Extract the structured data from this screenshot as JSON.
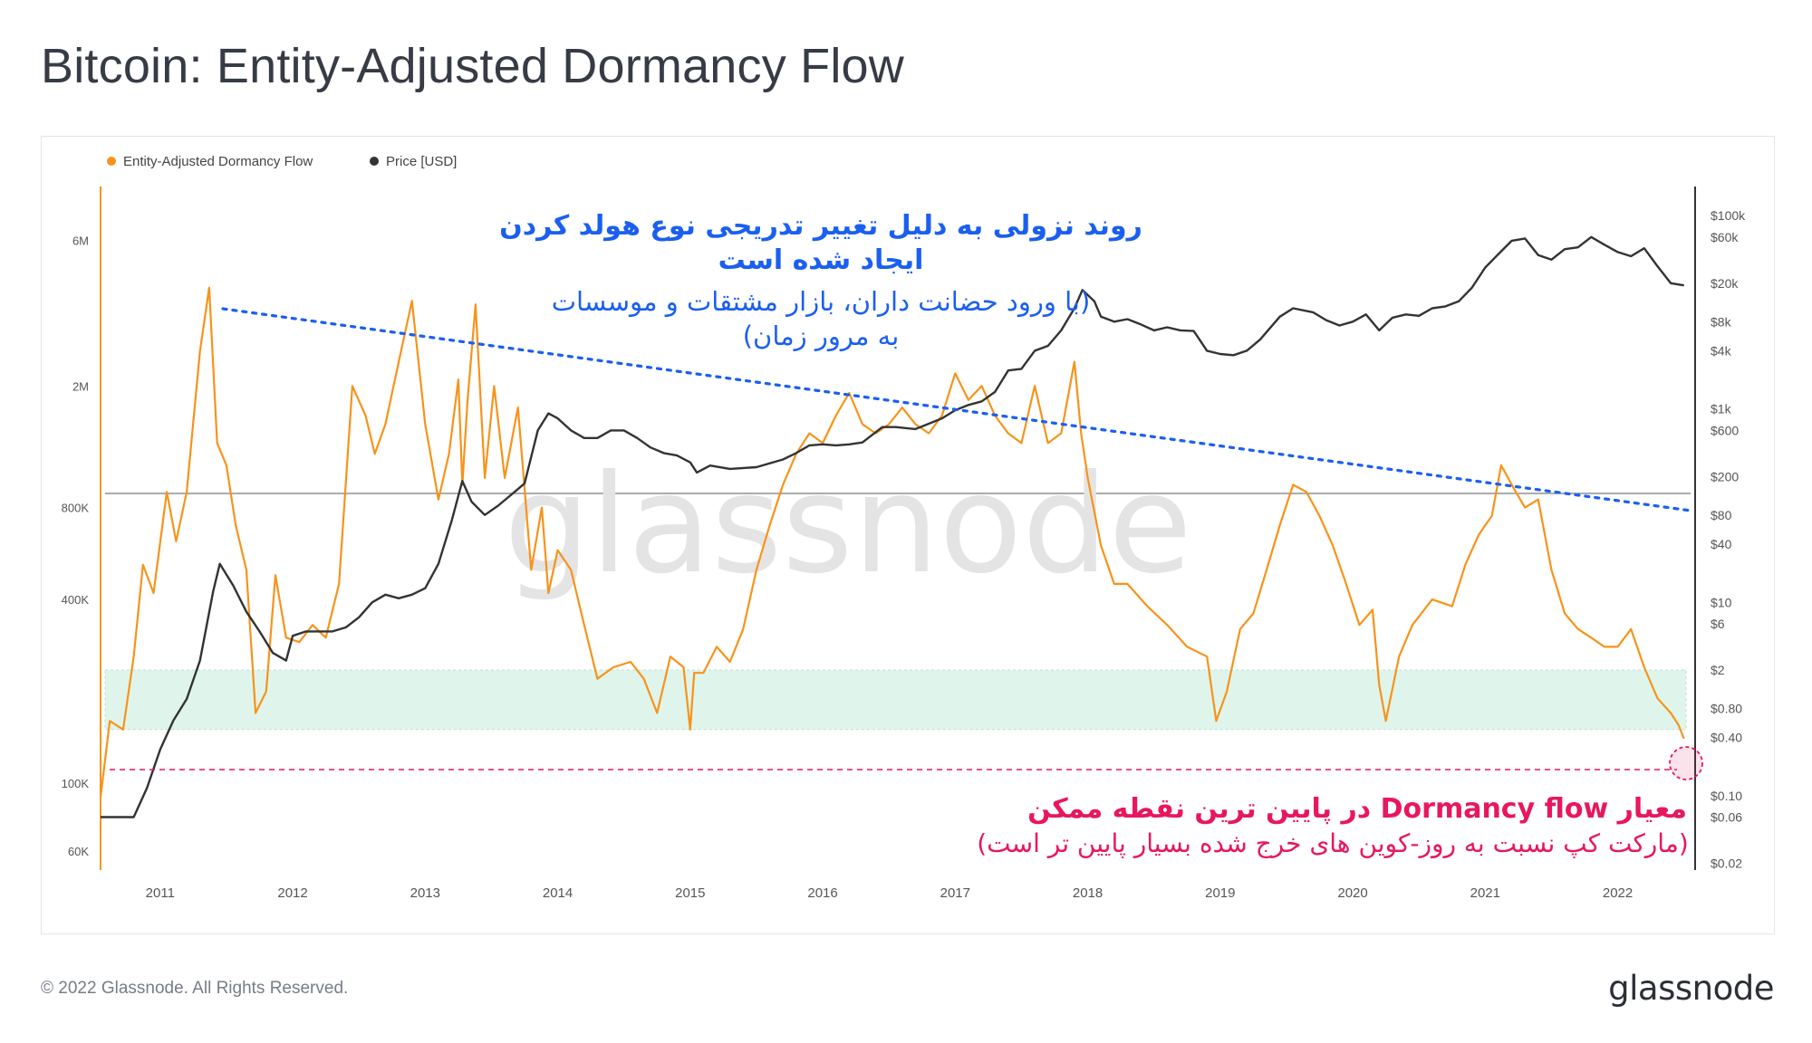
{
  "page": {
    "title": "Bitcoin: Entity-Adjusted Dormancy Flow",
    "copyright": "© 2022 Glassnode. All Rights Reserved.",
    "brand": "glassnode",
    "watermark": "glassnode"
  },
  "colors": {
    "dormancy": "#f7931a",
    "price": "#333333",
    "trend": "#1a5ff0",
    "low_marker": "#e8175d",
    "band": "#dff5ec",
    "annotation_blue": "#1a5ff0",
    "annotation_pink": "#e8175d"
  },
  "annotations": {
    "trend_title_1": "روند نزولی به دلیل تغییر تدریجی نوع هولد کردن",
    "trend_title_2": "ایجاد شده است",
    "trend_sub_1": "(با ورود حضانت داران، بازار مشتقات و موسسات",
    "trend_sub_2": "به مرور زمان)",
    "low_title": "معیار Dormancy flow در پایین ترین نقطه ممکن",
    "low_sub": "(مارکت کپ نسبت به روز-کوین های خرج شده بسیار پایین تر است)"
  },
  "chart_data": {
    "type": "line",
    "title": "Bitcoin: Entity-Adjusted Dormancy Flow",
    "legend": [
      "Entity-Adjusted Dormancy Flow",
      "Price [USD]"
    ],
    "legend_position": "top-left",
    "x_ticks": [
      "2011",
      "2012",
      "2013",
      "2014",
      "2015",
      "2016",
      "2017",
      "2018",
      "2019",
      "2020",
      "2021",
      "2022"
    ],
    "xlim": [
      2010.55,
      2022.55
    ],
    "left_axis": {
      "scale": "log",
      "ticks": [
        "6M",
        "2M",
        "800K",
        "400K",
        "100K",
        "60K"
      ],
      "tick_values": [
        6000000,
        2000000,
        800000,
        400000,
        100000,
        60000
      ],
      "ylim": [
        52000,
        9000000
      ]
    },
    "right_axis": {
      "scale": "log",
      "ticks": [
        "$100k",
        "$60k",
        "$20k",
        "$8k",
        "$4k",
        "$1k",
        "$600",
        "$200",
        "$80",
        "$40",
        "$10",
        "$6",
        "$2",
        "$0.80",
        "$0.40",
        "$0.10",
        "$0.06",
        "$0.02"
      ],
      "tick_values": [
        100000,
        60000,
        20000,
        8000,
        4000,
        1000,
        600,
        200,
        80,
        40,
        10,
        6,
        2,
        0.8,
        0.4,
        0.1,
        0.06,
        0.02
      ],
      "ylim": [
        0.017,
        200000
      ]
    },
    "series": [
      {
        "name": "Entity-Adjusted Dormancy Flow",
        "axis": "left",
        "x": [
          2010.55,
          2010.62,
          2010.72,
          2010.8,
          2010.87,
          2010.95,
          2011.05,
          2011.12,
          2011.2,
          2011.3,
          2011.37,
          2011.43,
          2011.5,
          2011.57,
          2011.65,
          2011.72,
          2011.8,
          2011.87,
          2011.95,
          2012.05,
          2012.15,
          2012.25,
          2012.35,
          2012.45,
          2012.55,
          2012.62,
          2012.7,
          2012.8,
          2012.9,
          2013.0,
          2013.1,
          2013.18,
          2013.25,
          2013.28,
          2013.32,
          2013.38,
          2013.45,
          2013.52,
          2013.6,
          2013.7,
          2013.8,
          2013.88,
          2013.93,
          2014.0,
          2014.1,
          2014.2,
          2014.3,
          2014.42,
          2014.55,
          2014.65,
          2014.75,
          2014.85,
          2014.95,
          2015.0,
          2015.03,
          2015.1,
          2015.2,
          2015.3,
          2015.4,
          2015.5,
          2015.6,
          2015.7,
          2015.8,
          2015.9,
          2016.0,
          2016.1,
          2016.2,
          2016.3,
          2016.4,
          2016.5,
          2016.6,
          2016.7,
          2016.8,
          2016.9,
          2017.0,
          2017.1,
          2017.2,
          2017.3,
          2017.4,
          2017.5,
          2017.6,
          2017.7,
          2017.8,
          2017.9,
          2017.95,
          2018.0,
          2018.1,
          2018.2,
          2018.3,
          2018.45,
          2018.6,
          2018.75,
          2018.9,
          2018.97,
          2019.05,
          2019.15,
          2019.25,
          2019.35,
          2019.45,
          2019.55,
          2019.65,
          2019.75,
          2019.85,
          2019.95,
          2020.05,
          2020.15,
          2020.2,
          2020.25,
          2020.35,
          2020.45,
          2020.6,
          2020.75,
          2020.85,
          2020.95,
          2021.0,
          2021.05,
          2021.12,
          2021.2,
          2021.3,
          2021.4,
          2021.5,
          2021.6,
          2021.7,
          2021.8,
          2021.9,
          2022.0,
          2022.1,
          2022.2,
          2022.3,
          2022.4,
          2022.46,
          2022.5
        ],
        "values": [
          90000,
          160000,
          150000,
          260000,
          520000,
          420000,
          900000,
          620000,
          900000,
          2600000,
          4200000,
          1300000,
          1100000,
          700000,
          500000,
          170000,
          200000,
          480000,
          300000,
          290000,
          330000,
          300000,
          450000,
          2000000,
          1600000,
          1200000,
          1500000,
          2400000,
          3800000,
          1500000,
          850000,
          1200000,
          2100000,
          950000,
          1800000,
          3700000,
          1000000,
          2000000,
          1000000,
          1700000,
          500000,
          800000,
          420000,
          580000,
          500000,
          330000,
          220000,
          240000,
          250000,
          220000,
          170000,
          260000,
          240000,
          150000,
          230000,
          230000,
          280000,
          250000,
          320000,
          500000,
          700000,
          950000,
          1200000,
          1400000,
          1300000,
          1600000,
          1900000,
          1500000,
          1400000,
          1500000,
          1700000,
          1500000,
          1400000,
          1600000,
          2200000,
          1800000,
          2000000,
          1600000,
          1400000,
          1300000,
          2000000,
          1300000,
          1400000,
          2400000,
          1400000,
          1000000,
          600000,
          450000,
          450000,
          380000,
          330000,
          280000,
          260000,
          160000,
          200000,
          320000,
          360000,
          500000,
          700000,
          950000,
          900000,
          750000,
          600000,
          450000,
          330000,
          370000,
          210000,
          160000,
          260000,
          330000,
          400000,
          380000,
          520000,
          650000,
          700000,
          750000,
          1100000,
          950000,
          800000,
          850000,
          500000,
          360000,
          320000,
          300000,
          280000,
          280000,
          320000,
          240000,
          190000,
          170000,
          155000,
          140000
        ],
        "color": "#f7931a"
      },
      {
        "name": "Price [USD]",
        "axis": "right",
        "x": [
          2010.55,
          2010.7,
          2010.8,
          2010.9,
          2011.0,
          2011.1,
          2011.2,
          2011.3,
          2011.4,
          2011.45,
          2011.55,
          2011.65,
          2011.75,
          2011.85,
          2011.95,
          2012.0,
          2012.1,
          2012.2,
          2012.3,
          2012.4,
          2012.5,
          2012.6,
          2012.7,
          2012.8,
          2012.9,
          2013.0,
          2013.1,
          2013.2,
          2013.28,
          2013.35,
          2013.45,
          2013.55,
          2013.65,
          2013.75,
          2013.85,
          2013.93,
          2014.0,
          2014.1,
          2014.2,
          2014.3,
          2014.4,
          2014.5,
          2014.6,
          2014.7,
          2014.8,
          2014.9,
          2015.0,
          2015.05,
          2015.15,
          2015.3,
          2015.5,
          2015.7,
          2015.8,
          2015.9,
          2016.0,
          2016.1,
          2016.2,
          2016.3,
          2016.45,
          2016.55,
          2016.7,
          2016.9,
          2017.0,
          2017.1,
          2017.2,
          2017.3,
          2017.4,
          2017.5,
          2017.6,
          2017.7,
          2017.8,
          2017.9,
          2017.96,
          2018.05,
          2018.1,
          2018.2,
          2018.3,
          2018.4,
          2018.5,
          2018.6,
          2018.7,
          2018.8,
          2018.9,
          2019.0,
          2019.1,
          2019.2,
          2019.3,
          2019.45,
          2019.55,
          2019.7,
          2019.8,
          2019.9,
          2020.0,
          2020.1,
          2020.2,
          2020.3,
          2020.4,
          2020.5,
          2020.6,
          2020.7,
          2020.8,
          2020.9,
          2021.0,
          2021.1,
          2021.2,
          2021.3,
          2021.4,
          2021.5,
          2021.6,
          2021.7,
          2021.8,
          2021.9,
          2022.0,
          2022.1,
          2022.2,
          2022.3,
          2022.4,
          2022.5
        ],
        "values": [
          0.06,
          0.06,
          0.06,
          0.12,
          0.3,
          0.6,
          1.0,
          2.5,
          13,
          25,
          15,
          8,
          5,
          3,
          2.5,
          4.5,
          5,
          5,
          5,
          5.5,
          7,
          10,
          12,
          11,
          12,
          14,
          25,
          70,
          180,
          110,
          80,
          100,
          130,
          170,
          600,
          900,
          800,
          600,
          500,
          500,
          600,
          600,
          500,
          400,
          350,
          330,
          280,
          220,
          260,
          240,
          250,
          300,
          350,
          420,
          430,
          420,
          430,
          450,
          650,
          650,
          620,
          800,
          970,
          1100,
          1200,
          1500,
          2500,
          2600,
          4000,
          4500,
          6500,
          11000,
          17000,
          13000,
          9000,
          8000,
          8500,
          7500,
          6500,
          7000,
          6500,
          6400,
          4000,
          3700,
          3600,
          4000,
          5200,
          9000,
          11000,
          10000,
          8300,
          7300,
          8000,
          9500,
          6500,
          8800,
          9500,
          9200,
          11000,
          11500,
          13000,
          18000,
          29000,
          40000,
          55000,
          58000,
          39000,
          35000,
          45000,
          47000,
          60000,
          50000,
          42000,
          38000,
          46000,
          30000,
          20000,
          19000
        ],
        "color": "#333333"
      }
    ],
    "watermark_text": "glassnode"
  }
}
